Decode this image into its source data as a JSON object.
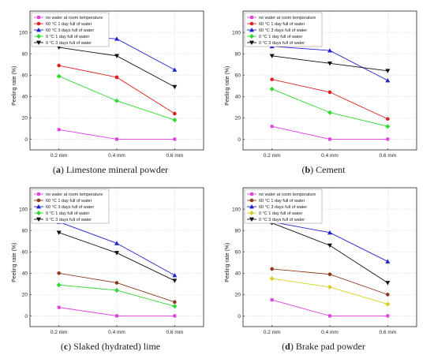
{
  "chart_data": [
    {
      "type": "line",
      "panel_label": "a",
      "caption": "Limestone mineral powder",
      "ylabel": "Peeling rate (%)",
      "xlabel": "",
      "categories": [
        "0.2 mm",
        "0.4 mm",
        "0.6 mm"
      ],
      "ylim": [
        -10,
        120
      ],
      "yticks": [
        "0",
        "20",
        "40",
        "60",
        "80",
        "100"
      ],
      "grid": true,
      "legend_position": "top-left",
      "series": [
        {
          "name": "no water at room temperature",
          "color": "#e040e0",
          "marker": "square",
          "values": [
            9,
            0,
            0
          ]
        },
        {
          "name": "60 °C 1 day full of water",
          "color": "#e02020",
          "marker": "circle",
          "values": [
            69,
            58,
            24
          ]
        },
        {
          "name": "60 °C 3 days full of water",
          "color": "#2020d0",
          "marker": "triangle-up",
          "values": [
            97,
            94,
            65
          ]
        },
        {
          "name": "0 °C 1 day full of water",
          "color": "#30d830",
          "marker": "diamond",
          "values": [
            59,
            36,
            18
          ]
        },
        {
          "name": "0 °C 3 days full of water",
          "color": "#111111",
          "marker": "triangle-down",
          "values": [
            86,
            78,
            49
          ]
        }
      ]
    },
    {
      "type": "line",
      "panel_label": "b",
      "caption": "Cement",
      "ylabel": "Peeling rate (%)",
      "xlabel": "",
      "categories": [
        "0.2 mm",
        "0.4 mm",
        "0.6 mm"
      ],
      "ylim": [
        -10,
        120
      ],
      "yticks": [
        "0",
        "20",
        "40",
        "60",
        "80",
        "100"
      ],
      "grid": true,
      "legend_position": "top-left",
      "series": [
        {
          "name": "no water at room temperature",
          "color": "#e040e0",
          "marker": "square",
          "values": [
            12,
            0,
            0
          ]
        },
        {
          "name": "60 °C 1 day full of water",
          "color": "#e02020",
          "marker": "circle",
          "values": [
            56,
            44,
            19
          ]
        },
        {
          "name": "60 °C 3 days full of water",
          "color": "#2020d0",
          "marker": "triangle-up",
          "values": [
            87,
            83,
            55
          ]
        },
        {
          "name": "0 °C 1 day full of water",
          "color": "#30d830",
          "marker": "diamond",
          "values": [
            47,
            25,
            12
          ]
        },
        {
          "name": "0 °C 3 days full of water",
          "color": "#111111",
          "marker": "triangle-down",
          "values": [
            78,
            71,
            64
          ]
        }
      ]
    },
    {
      "type": "line",
      "panel_label": "c",
      "caption": "Slaked (hydrated) lime",
      "ylabel": "Peeling rate (%)",
      "xlabel": "",
      "categories": [
        "0.2 mm",
        "0.4 mm",
        "0.6 mm"
      ],
      "ylim": [
        -10,
        120
      ],
      "yticks": [
        "0",
        "20",
        "40",
        "60",
        "80",
        "100"
      ],
      "grid": true,
      "legend_position": "top-left",
      "series": [
        {
          "name": "no water at room temperature",
          "color": "#e040e0",
          "marker": "square",
          "values": [
            8,
            0,
            0
          ]
        },
        {
          "name": "60 °C 1 day full of water",
          "color": "#8b3a1a",
          "marker": "circle",
          "values": [
            40,
            31,
            13
          ]
        },
        {
          "name": "60 °C 3 days full of water",
          "color": "#2020d0",
          "marker": "triangle-up",
          "values": [
            88,
            68,
            38
          ]
        },
        {
          "name": "0 °C 1 day full of water",
          "color": "#30d830",
          "marker": "diamond",
          "values": [
            29,
            24,
            9
          ]
        },
        {
          "name": "0 °C 3 days full of water",
          "color": "#111111",
          "marker": "triangle-down",
          "values": [
            78,
            59,
            33
          ]
        }
      ]
    },
    {
      "type": "line",
      "panel_label": "d",
      "caption": "Brake pad powder",
      "ylabel": "Peeling rate (%)",
      "xlabel": "",
      "categories": [
        "0.2 mm",
        "0.4 mm",
        "0.6 mm"
      ],
      "ylim": [
        -10,
        120
      ],
      "yticks": [
        "0",
        "20",
        "40",
        "60",
        "80",
        "100"
      ],
      "grid": true,
      "legend_position": "top-left",
      "series": [
        {
          "name": "no water at room temperature",
          "color": "#e040e0",
          "marker": "square",
          "values": [
            15,
            0,
            0
          ]
        },
        {
          "name": "60 °C 1 day full of water",
          "color": "#8b3a1a",
          "marker": "circle",
          "values": [
            44,
            39,
            20
          ]
        },
        {
          "name": "60 °C 3 days full of water",
          "color": "#2020d0",
          "marker": "triangle-up",
          "values": [
            88,
            78,
            51
          ]
        },
        {
          "name": "0 °C 1 day full of water",
          "color": "#d8d020",
          "marker": "diamond",
          "values": [
            35,
            27,
            11
          ]
        },
        {
          "name": "0 °C 3 days full of water",
          "color": "#111111",
          "marker": "triangle-down",
          "values": [
            87,
            66,
            31
          ]
        }
      ]
    }
  ]
}
